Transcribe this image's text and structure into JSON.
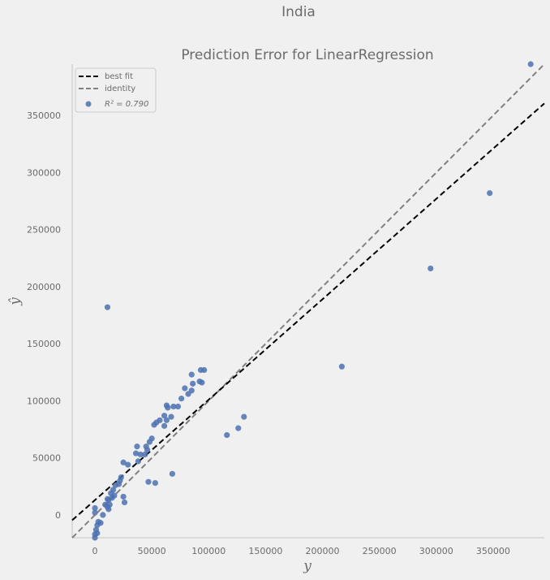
{
  "chart_data": {
    "type": "scatter",
    "suptitle": "India",
    "title": "Prediction Error for LinearRegression",
    "xlabel": "y",
    "ylabel": "ŷ",
    "xlim": [
      -20000,
      395000
    ],
    "ylim": [
      -20000,
      395000
    ],
    "xticks": [
      0,
      50000,
      100000,
      150000,
      200000,
      250000,
      300000,
      350000
    ],
    "yticks": [
      0,
      50000,
      100000,
      150000,
      200000,
      250000,
      300000,
      350000
    ],
    "grid": false,
    "legend_position": "top-left",
    "legend": [
      {
        "label": "best fit",
        "style": "dashed",
        "color": "#000000"
      },
      {
        "label": "identity",
        "style": "dashed",
        "color": "#808080"
      },
      {
        "label": "R² = 0.790",
        "style": "marker",
        "color": "#4c72b0"
      }
    ],
    "best_fit": {
      "slope": 0.88,
      "intercept": 13000
    },
    "marker_color": "#4c72b0",
    "points": [
      [
        383000,
        395000
      ],
      [
        347000,
        282000
      ],
      [
        295000,
        216000
      ],
      [
        217000,
        130000
      ],
      [
        131000,
        86000
      ],
      [
        126000,
        76000
      ],
      [
        116000,
        70000
      ],
      [
        68000,
        36000
      ],
      [
        53000,
        28000
      ],
      [
        47000,
        29000
      ],
      [
        11000,
        182000
      ],
      [
        96000,
        127000
      ],
      [
        93000,
        127000
      ],
      [
        85000,
        123000
      ],
      [
        94000,
        116000
      ],
      [
        92000,
        117000
      ],
      [
        86000,
        115000
      ],
      [
        79000,
        111000
      ],
      [
        85000,
        109000
      ],
      [
        82000,
        106000
      ],
      [
        76000,
        102000
      ],
      [
        73000,
        95000
      ],
      [
        69000,
        95000
      ],
      [
        63000,
        96000
      ],
      [
        64000,
        94000
      ],
      [
        67000,
        86000
      ],
      [
        61000,
        87000
      ],
      [
        63000,
        83000
      ],
      [
        57000,
        83000
      ],
      [
        54000,
        81000
      ],
      [
        52000,
        79000
      ],
      [
        61000,
        78000
      ],
      [
        50000,
        67000
      ],
      [
        48000,
        64000
      ],
      [
        45000,
        60000
      ],
      [
        37000,
        60000
      ],
      [
        46000,
        57000
      ],
      [
        44000,
        53000
      ],
      [
        36000,
        54000
      ],
      [
        40000,
        53000
      ],
      [
        38000,
        47000
      ],
      [
        25000,
        46000
      ],
      [
        29000,
        44000
      ],
      [
        23000,
        33000
      ],
      [
        22000,
        30000
      ],
      [
        21000,
        27000
      ],
      [
        18000,
        26000
      ],
      [
        16000,
        22000
      ],
      [
        14000,
        19000
      ],
      [
        17000,
        17000
      ],
      [
        15000,
        15000
      ],
      [
        11000,
        14000
      ],
      [
        12000,
        13000
      ],
      [
        13000,
        9000
      ],
      [
        9000,
        9000
      ],
      [
        11000,
        7000
      ],
      [
        12000,
        5000
      ],
      [
        7000,
        0
      ],
      [
        25000,
        16000
      ],
      [
        26000,
        11000
      ],
      [
        0,
        6000
      ],
      [
        0,
        2000
      ],
      [
        3000,
        -6000
      ],
      [
        5000,
        -7000
      ],
      [
        2000,
        -9000
      ],
      [
        1000,
        -13000
      ],
      [
        0,
        -17000
      ],
      [
        0,
        -20000
      ],
      [
        2000,
        -16000
      ]
    ]
  }
}
